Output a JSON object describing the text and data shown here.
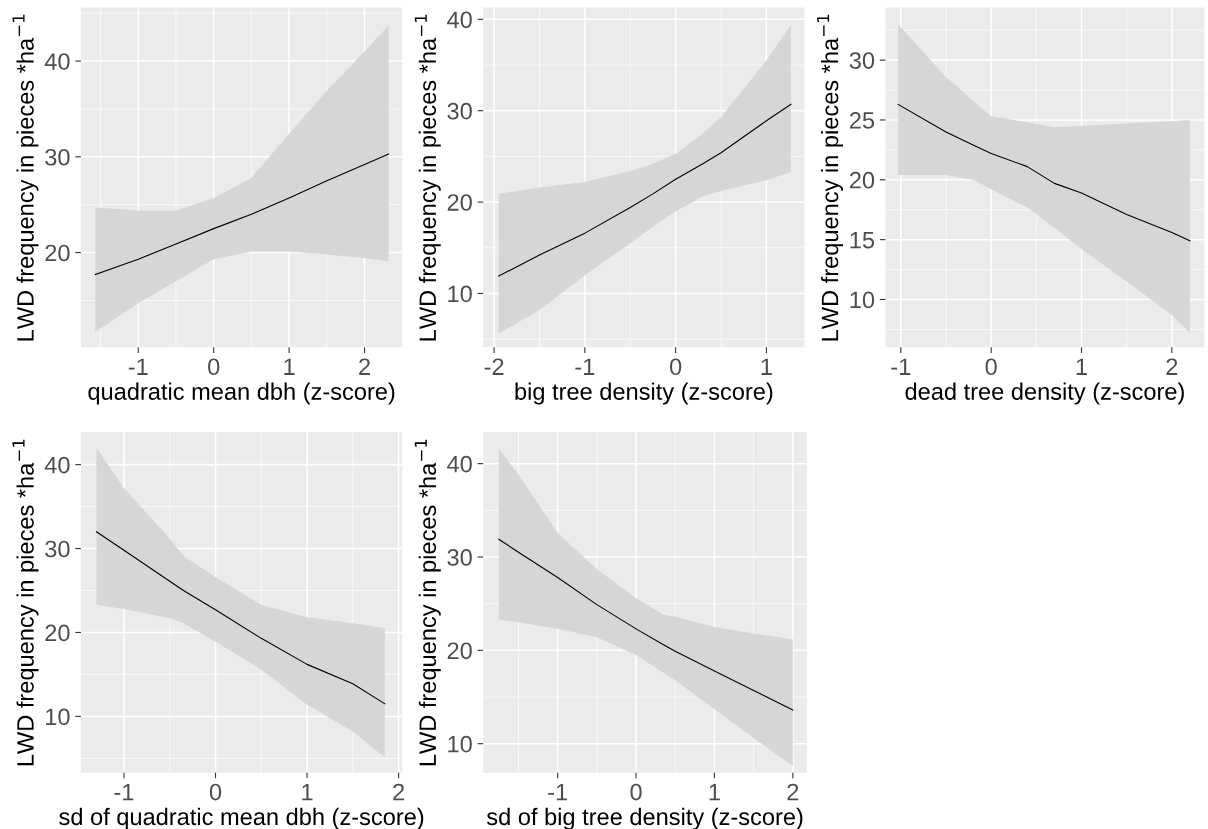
{
  "chart_data": [
    {
      "type": "line",
      "xlabel": "quadratic mean dbh (z-score)",
      "ylabel": "LWD frequency in pieces *ha$^{−1}$",
      "grid": true,
      "xlim": [
        -1.76,
        2.5
      ],
      "ylim": [
        10.1,
        45.6
      ],
      "xticks": [
        -1,
        0,
        1,
        2
      ],
      "yticks": [
        20,
        30,
        40
      ],
      "x": [
        -1.57,
        -1,
        -0.5,
        0,
        0.5,
        1,
        1.5,
        2,
        2.32
      ],
      "series": [
        {
          "color": "#000000",
          "values": [
            17.7,
            19.3,
            20.9,
            22.5,
            24.0,
            25.7,
            27.5,
            29.2,
            30.3
          ],
          "upper": [
            24.7,
            24.4,
            24.4,
            25.7,
            27.8,
            32.4,
            36.9,
            41.0,
            43.75
          ],
          "lower": [
            11.7,
            14.7,
            17.0,
            19.3,
            20.1,
            20.1,
            19.8,
            19.4,
            19.1
          ]
        }
      ]
    },
    {
      "type": "line",
      "xlabel": "big tree density (z-score)",
      "ylabel": "LWD frequency in pieces *ha$^{−1}$",
      "grid": true,
      "xlim": [
        -2.12,
        1.42
      ],
      "ylim": [
        4.1,
        41.3
      ],
      "xticks": [
        -2,
        -1,
        0,
        1
      ],
      "yticks": [
        10,
        20,
        30,
        40
      ],
      "x": [
        -1.95,
        -1.5,
        -1,
        -0.5,
        -0.25,
        0,
        0.3,
        0.5,
        1,
        1.27
      ],
      "series": [
        {
          "color": "#000000",
          "values": [
            11.9,
            14.2,
            16.6,
            19.4,
            20.9,
            22.5,
            24.2,
            25.4,
            28.9,
            30.7
          ],
          "upper": [
            20.9,
            21.6,
            22.2,
            23.4,
            24.2,
            25.3,
            27.5,
            29.3,
            35.5,
            39.4
          ],
          "lower": [
            5.6,
            8.2,
            12.0,
            15.5,
            17.3,
            19.0,
            20.6,
            21.2,
            22.4,
            23.3
          ]
        }
      ]
    },
    {
      "type": "line",
      "xlabel": "dead tree density (z-score)",
      "ylabel": "LWD frequency in pieces *ha$^{−1}$",
      "grid": true,
      "xlim": [
        -1.17,
        2.36
      ],
      "ylim": [
        6.0,
        34.4
      ],
      "xticks": [
        -1,
        0,
        1,
        2
      ],
      "yticks": [
        10,
        15,
        20,
        25,
        30
      ],
      "x": [
        -1.03,
        -0.5,
        -0.2,
        0,
        0.4,
        0.7,
        1,
        1.5,
        2,
        2.2
      ],
      "series": [
        {
          "color": "#000000",
          "values": [
            26.3,
            24.0,
            22.9,
            22.2,
            21.1,
            19.7,
            18.9,
            17.1,
            15.6,
            14.9
          ],
          "upper": [
            33.0,
            28.6,
            26.6,
            25.3,
            24.8,
            24.4,
            24.5,
            24.7,
            24.9,
            25.0
          ],
          "lower": [
            20.4,
            20.4,
            20.0,
            19.2,
            17.7,
            16.0,
            14.2,
            11.5,
            8.7,
            7.2
          ]
        }
      ]
    },
    {
      "type": "line",
      "xlabel": "sd of quadratic mean dbh (z-score)",
      "ylabel": "LWD frequency in pieces *ha$^{−1}$",
      "grid": true,
      "xlim": [
        -1.47,
        2.04
      ],
      "ylim": [
        3.3,
        43.9
      ],
      "xticks": [
        -1,
        0,
        1,
        2
      ],
      "yticks": [
        10,
        20,
        30,
        40
      ],
      "x": [
        -1.3,
        -1,
        -0.5,
        -0.35,
        0,
        0.5,
        1,
        1.5,
        1.85
      ],
      "series": [
        {
          "color": "#000000",
          "values": [
            32.0,
            29.8,
            26.1,
            25.0,
            22.7,
            19.3,
            16.2,
            13.9,
            11.5
          ],
          "upper": [
            42.0,
            37.2,
            31.2,
            29.1,
            26.6,
            23.3,
            21.8,
            21.1,
            20.5
          ],
          "lower": [
            23.3,
            22.8,
            21.7,
            21.1,
            18.9,
            15.6,
            11.4,
            8.2,
            5.1
          ]
        }
      ]
    },
    {
      "type": "line",
      "xlabel": "sd of big tree density (z-score)",
      "ylabel": "LWD frequency in pieces *ha$^{−1}$",
      "grid": true,
      "xlim": [
        -1.95,
        2.18
      ],
      "ylim": [
        6.9,
        43.4
      ],
      "xticks": [
        -1,
        0,
        1,
        2
      ],
      "yticks": [
        10,
        20,
        30,
        40
      ],
      "x": [
        -1.75,
        -1.5,
        -1,
        -0.5,
        0,
        0.35,
        0.5,
        1,
        1.5,
        2
      ],
      "series": [
        {
          "color": "#000000",
          "values": [
            31.9,
            30.5,
            27.8,
            24.9,
            22.3,
            20.6,
            19.9,
            17.8,
            15.7,
            13.6
          ],
          "upper": [
            41.6,
            38.8,
            32.6,
            28.7,
            25.6,
            23.8,
            23.6,
            22.5,
            21.8,
            21.2
          ],
          "lower": [
            23.3,
            23.0,
            22.3,
            21.4,
            19.5,
            17.6,
            16.8,
            13.7,
            10.6,
            7.6
          ]
        }
      ]
    }
  ]
}
